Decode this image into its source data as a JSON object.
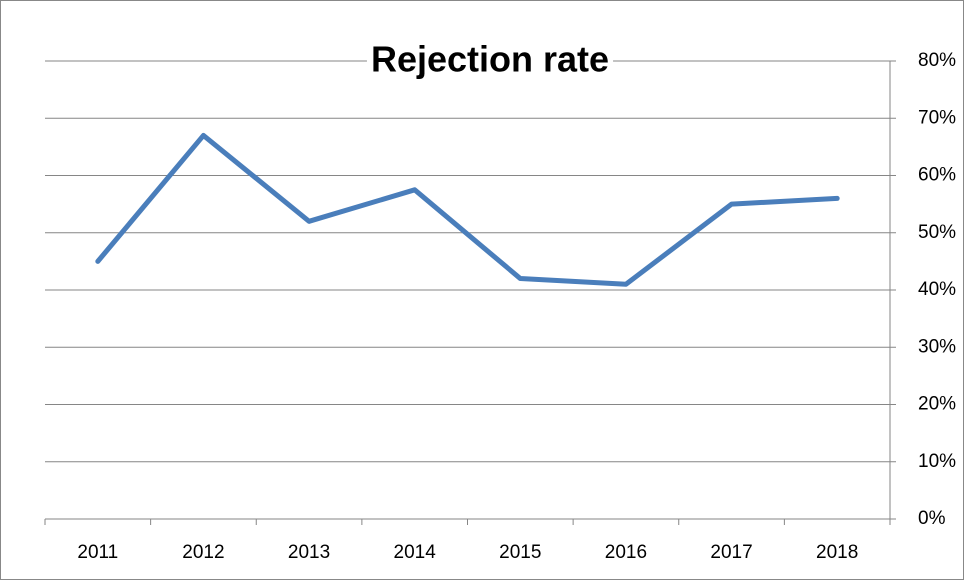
{
  "chart_data": {
    "type": "line",
    "title": "Rejection rate",
    "categories": [
      "2011",
      "2012",
      "2013",
      "2014",
      "2015",
      "2016",
      "2017",
      "2018"
    ],
    "series": [
      {
        "name": "Rejection rate",
        "color": "#4a7ebb",
        "values": [
          45,
          67,
          52,
          57.5,
          42,
          41,
          55,
          56
        ]
      }
    ],
    "ylim": [
      0,
      80
    ],
    "yticks": [
      {
        "value": 0,
        "label": "0%"
      },
      {
        "value": 10,
        "label": "10%"
      },
      {
        "value": 20,
        "label": "20%"
      },
      {
        "value": 30,
        "label": "30%"
      },
      {
        "value": 40,
        "label": "40%"
      },
      {
        "value": 50,
        "label": "50%"
      },
      {
        "value": 60,
        "label": "60%"
      },
      {
        "value": 70,
        "label": "70%"
      },
      {
        "value": 80,
        "label": "80%"
      }
    ],
    "grid": true,
    "y_axis_side": "right"
  }
}
